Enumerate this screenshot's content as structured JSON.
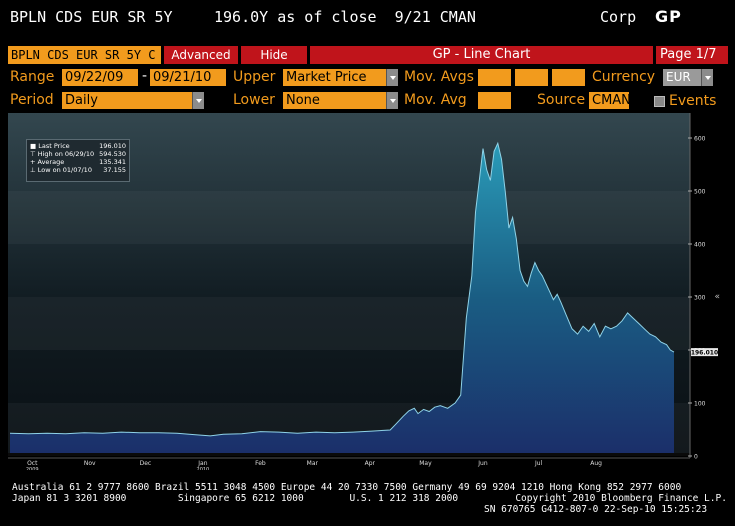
{
  "header": {
    "security": "BPLN CDS EUR SR 5Y",
    "quote": "196.0Y as of close  9/21 CMAN",
    "sector": "Corp",
    "function_code": "GP"
  },
  "toolbar": {
    "ticker_field": "BPLN CDS EUR SR 5Y C",
    "advanced_label": "Advanced",
    "hide_label": "Hide",
    "chart_title": "GP - Line Chart",
    "page_label": "Page 1/7"
  },
  "controls": {
    "range_label": "Range",
    "range_from": "09/22/09",
    "range_dash": "-",
    "range_to": "09/21/10",
    "period_label": "Period",
    "period_value": "Daily",
    "upper_label": "Upper",
    "upper_value": "Market Price",
    "lower_label": "Lower",
    "lower_value": "None",
    "mov_avgs_label": "Mov. Avgs",
    "mov_avg_label": "Mov. Avg",
    "currency_label": "Currency",
    "currency_value": "EUR",
    "source_label": "Source",
    "source_value": "CMAN",
    "events_label": "Events"
  },
  "legend": {
    "items": [
      {
        "label": "Last Price",
        "value": "196.010"
      },
      {
        "label": "High on 06/29/10",
        "value": "594.530"
      },
      {
        "label": "Average",
        "value": "135.341"
      },
      {
        "label": "Low on 01/07/10",
        "value": "37.155"
      }
    ]
  },
  "chart_data": {
    "type": "area",
    "title": "",
    "xlabel": "",
    "ylabel": "",
    "ylim": [
      0,
      620
    ],
    "yticks": [
      0,
      100,
      200,
      300,
      400,
      500,
      600
    ],
    "xticks": [
      {
        "label": "Oct",
        "day": 12,
        "sub": "2009"
      },
      {
        "label": "Nov",
        "day": 43,
        "sub": ""
      },
      {
        "label": "Dec",
        "day": 73,
        "sub": ""
      },
      {
        "label": "Jan",
        "day": 104,
        "sub": "2010"
      },
      {
        "label": "Feb",
        "day": 135,
        "sub": ""
      },
      {
        "label": "Mar",
        "day": 163,
        "sub": ""
      },
      {
        "label": "Apr",
        "day": 194,
        "sub": ""
      },
      {
        "label": "May",
        "day": 224,
        "sub": ""
      },
      {
        "label": "Jun",
        "day": 255,
        "sub": ""
      },
      {
        "label": "Jul",
        "day": 285,
        "sub": ""
      },
      {
        "label": "Aug",
        "day": 316,
        "sub": ""
      }
    ],
    "last_value_label": "196.010",
    "series": [
      {
        "x": [
          0,
          10,
          20,
          30,
          40,
          50,
          60,
          70,
          80,
          90,
          100,
          108,
          115,
          125,
          135,
          145,
          155,
          165,
          175,
          185,
          195,
          205,
          208,
          212,
          215,
          218,
          220,
          223,
          226,
          229,
          232,
          236,
          240,
          243,
          246,
          249,
          251,
          253,
          255,
          257,
          259,
          261,
          263,
          265,
          267,
          269,
          271,
          273,
          275,
          277,
          279,
          281,
          283,
          285,
          287,
          289,
          291,
          293,
          295,
          297,
          300,
          303,
          306,
          309,
          312,
          315,
          318,
          321,
          324,
          327,
          330,
          333,
          336,
          339,
          342,
          345,
          348,
          351,
          354,
          356,
          358
        ],
        "y": [
          43,
          42,
          43,
          42,
          44,
          43,
          45,
          44,
          44,
          43,
          40,
          38,
          41,
          42,
          46,
          45,
          43,
          45,
          44,
          45,
          47,
          49,
          60,
          75,
          85,
          90,
          80,
          88,
          84,
          92,
          95,
          90,
          100,
          115,
          260,
          340,
          460,
          520,
          580,
          540,
          520,
          575,
          590,
          560,
          500,
          430,
          450,
          410,
          350,
          330,
          320,
          345,
          365,
          350,
          340,
          325,
          310,
          295,
          305,
          290,
          265,
          240,
          230,
          245,
          235,
          250,
          225,
          245,
          240,
          245,
          255,
          270,
          260,
          250,
          240,
          230,
          225,
          215,
          210,
          200,
          196
        ]
      }
    ]
  },
  "footer": {
    "line1": "Australia 61 2 9777 8600 Brazil 5511 3048 4500 Europe 44 20 7330 7500 Germany 49 69 9204 1210 Hong Kong 852 2977 6000",
    "line2": "Japan 81 3 3201 8900         Singapore 65 6212 1000        U.S. 1 212 318 2000          Copyright 2010 Bloomberg Finance L.P.",
    "line3": "SN 670765 G412-807-0 22-Sep-10 15:25:23"
  },
  "colors": {
    "accent": "#f29b1d",
    "title_red": "#c0141b",
    "area_fill": "#1e6a8a"
  }
}
